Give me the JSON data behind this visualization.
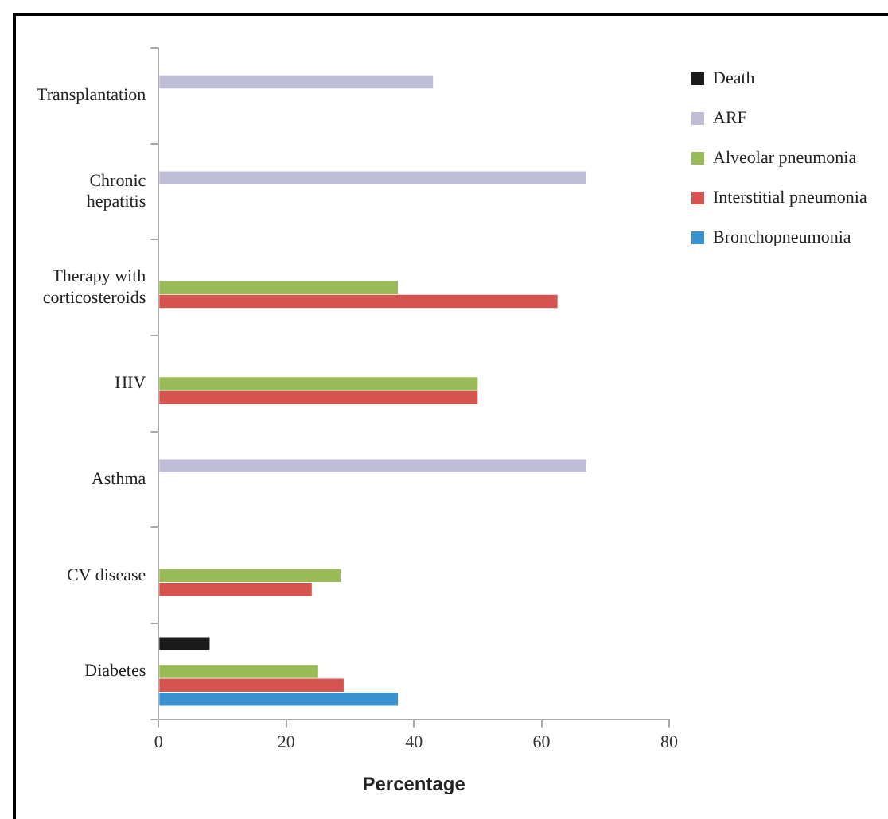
{
  "chart_data": {
    "type": "bar",
    "orientation": "horizontal",
    "xlabel": "Percentage",
    "categories": [
      "Transplantation",
      "Chronic hepatitis",
      "Therapy with corticosteroids",
      "HIV",
      "Asthma",
      "CV disease",
      "Diabetes"
    ],
    "series": [
      {
        "name": "Death",
        "color": "#1a1a1a",
        "values": [
          null,
          null,
          null,
          null,
          null,
          null,
          8
        ]
      },
      {
        "name": "ARF",
        "color": "#c0bdd6",
        "values": [
          43,
          67,
          null,
          null,
          67,
          null,
          null
        ]
      },
      {
        "name": "Alveolar pneumonia",
        "color": "#9bbb59",
        "values": [
          null,
          null,
          37.5,
          50,
          null,
          28.5,
          25
        ]
      },
      {
        "name": "Interstitial pneumonia",
        "color": "#d6544f",
        "values": [
          null,
          null,
          62.5,
          50,
          null,
          24,
          29
        ]
      },
      {
        "name": "Bronchopneumonia",
        "color": "#3a93d0",
        "values": [
          null,
          null,
          null,
          null,
          null,
          null,
          37.5
        ]
      }
    ],
    "xlim": [
      0,
      80
    ],
    "xticks": [
      0,
      20,
      40,
      60,
      80
    ],
    "grid": false,
    "legend": "right"
  }
}
